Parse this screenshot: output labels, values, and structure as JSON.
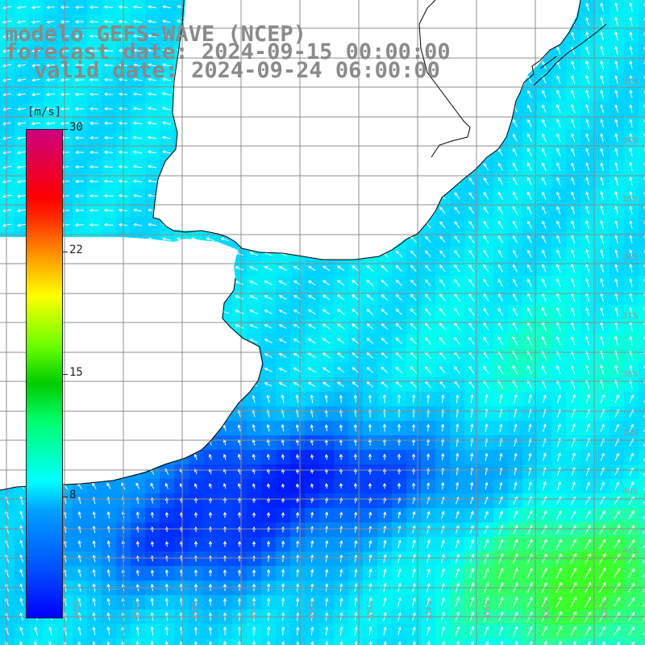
{
  "header": {
    "line1": "modelo GEFS-WAVE (NCEP)",
    "line2": "forecast date: 2024-09-15 00:00:00",
    "line3": "valid date: 2024-09-24 06:00:00"
  },
  "colorbar": {
    "unit": "[m/s]",
    "ticks": [
      "30",
      "22",
      "15",
      "8"
    ]
  },
  "lat_labels": [
    "33S",
    "34S",
    "35S",
    "36S",
    "37S",
    "38S",
    "39S",
    "40S",
    "41S"
  ],
  "lon_labels": [
    "60W",
    "59W",
    "58W",
    "57W",
    "56W",
    "55W",
    "54W",
    "53W",
    "52W",
    "51W"
  ],
  "colors": {
    "land": "#ffffff",
    "coast": "#000000",
    "grid": "#8c8c8c",
    "arrows": "#ffffff",
    "title": "#8a8a8a"
  }
}
